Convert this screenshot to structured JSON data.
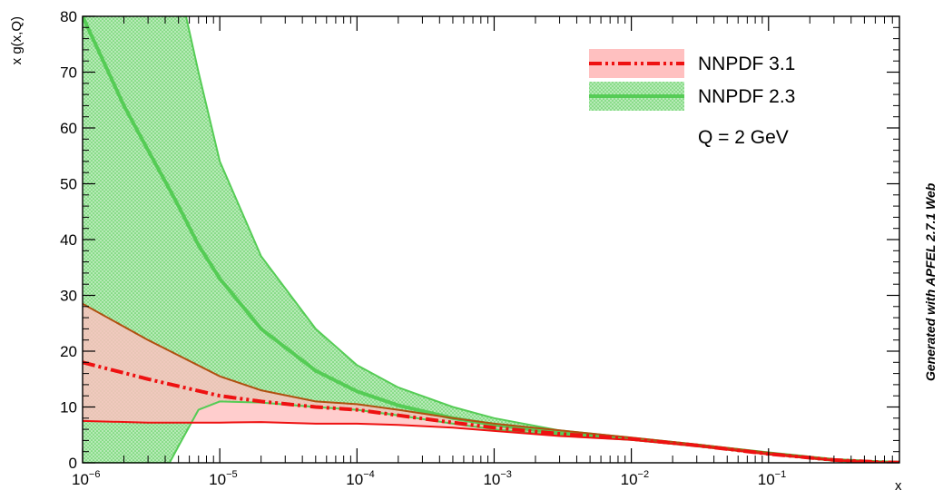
{
  "chart_data": {
    "type": "area",
    "title": "",
    "xlabel": "x",
    "ylabel": "x g(x,Q)",
    "xscale": "log",
    "xlim": [
      1e-06,
      0.9
    ],
    "ylim": [
      0,
      80
    ],
    "x_ticks": [
      {
        "value": 1e-06,
        "base": "10",
        "exp": "−6"
      },
      {
        "value": 1e-05,
        "base": "10",
        "exp": "−5"
      },
      {
        "value": 0.0001,
        "base": "10",
        "exp": "−4"
      },
      {
        "value": 0.001,
        "base": "10",
        "exp": "−3"
      },
      {
        "value": 0.01,
        "base": "10",
        "exp": "−2"
      },
      {
        "value": 0.1,
        "base": "10",
        "exp": "−1"
      }
    ],
    "y_ticks": [
      "0",
      "10",
      "20",
      "30",
      "40",
      "50",
      "60",
      "70",
      "80"
    ],
    "legend_position": "top-right",
    "annotation": "Q = 2 GeV",
    "side_label": "Generated with APFEL 2.7.1 Web",
    "series": [
      {
        "name": "NNPDF 3.1",
        "color": "#ee1111",
        "fill": "#ffc0c0",
        "line_style": "dash-dot-dot",
        "x": [
          1e-06,
          3e-06,
          1e-05,
          2e-05,
          5e-05,
          0.0001,
          0.0002,
          0.0005,
          0.001,
          0.003,
          0.01,
          0.03,
          0.1,
          0.3,
          0.6,
          0.9
        ],
        "upper": [
          28.5,
          22.0,
          15.5,
          13.0,
          11.0,
          10.5,
          9.5,
          8.0,
          7.0,
          5.8,
          4.5,
          3.3,
          1.8,
          0.6,
          0.2,
          0.05
        ],
        "central": [
          18.0,
          15.0,
          12.0,
          11.0,
          10.0,
          9.5,
          8.5,
          7.2,
          6.3,
          5.2,
          4.3,
          3.1,
          1.6,
          0.5,
          0.15,
          0.03
        ],
        "lower": [
          7.5,
          7.2,
          7.2,
          7.3,
          7.0,
          7.0,
          6.8,
          6.3,
          5.7,
          4.8,
          4.1,
          3.0,
          1.5,
          0.4,
          0.1,
          0.02
        ]
      },
      {
        "name": "NNPDF 2.3",
        "color": "#55cc55",
        "fill": "#b6eab6",
        "line_style": "solid",
        "x": [
          1e-06,
          2e-06,
          3e-06,
          4.3e-06,
          5e-06,
          7e-06,
          1e-05,
          2e-05,
          5e-05,
          0.0001,
          0.0002,
          0.0005,
          0.001,
          0.003,
          0.01,
          0.03,
          0.1,
          0.3,
          0.6,
          0.9
        ],
        "upper": [
          90,
          90,
          90,
          90,
          86,
          70,
          54,
          37,
          24,
          17.5,
          13.5,
          10.0,
          8.0,
          5.8,
          4.5,
          3.3,
          1.8,
          0.6,
          0.2,
          0.05
        ],
        "central": [
          80,
          64,
          56,
          49,
          46,
          39,
          33,
          24,
          16.5,
          12.8,
          10.3,
          8.0,
          6.8,
          5.3,
          4.3,
          3.1,
          1.7,
          0.5,
          0.15,
          0.03
        ],
        "lower": [
          0,
          0,
          0,
          0,
          3,
          9.5,
          11.0,
          10.8,
          10.0,
          9.5,
          8.5,
          7.0,
          6.0,
          4.9,
          4.1,
          3.0,
          1.5,
          0.4,
          0.1,
          0.02
        ]
      }
    ]
  }
}
